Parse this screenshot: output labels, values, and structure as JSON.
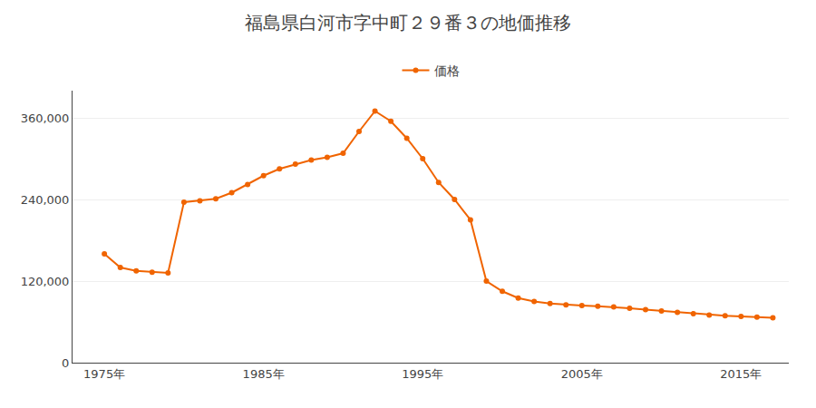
{
  "chart_data": {
    "type": "line",
    "title": "福島県白河市字中町２９番３の地価推移",
    "x": [
      1975,
      1976,
      1977,
      1978,
      1979,
      1980,
      1981,
      1982,
      1983,
      1984,
      1985,
      1986,
      1987,
      1988,
      1989,
      1990,
      1991,
      1992,
      1993,
      1994,
      1995,
      1996,
      1997,
      1998,
      1999,
      2000,
      2001,
      2002,
      2003,
      2004,
      2005,
      2006,
      2007,
      2008,
      2009,
      2010,
      2011,
      2012,
      2013,
      2014,
      2015,
      2016,
      2017
    ],
    "series": [
      {
        "name": "価格",
        "color": "#f06400",
        "marker": "circle",
        "line_style": "solid",
        "values": [
          160000,
          140000,
          135000,
          133000,
          132000,
          236000,
          238000,
          241000,
          250000,
          262000,
          275000,
          285000,
          292000,
          298000,
          302000,
          308000,
          340000,
          370000,
          355000,
          330000,
          300000,
          265000,
          240000,
          210000,
          120000,
          105000,
          95000,
          90000,
          87000,
          85000,
          84000,
          83000,
          82000,
          80000,
          78000,
          76000,
          74000,
          72000,
          70000,
          69000,
          68000,
          67000,
          66000
        ]
      }
    ],
    "xlim": [
      1973,
      2018
    ],
    "xticks": [
      {
        "value": 1975,
        "label": "1975年"
      },
      {
        "value": 1985,
        "label": "1985年"
      },
      {
        "value": 1995,
        "label": "1995年"
      },
      {
        "value": 2005,
        "label": "2005年"
      },
      {
        "value": 2015,
        "label": "2015年"
      }
    ],
    "ylim": [
      0,
      400000
    ],
    "yticks": [
      0,
      {
        "value": 120000,
        "label": "120,000"
      },
      {
        "value": 240000,
        "label": "240,000"
      },
      {
        "value": 360000,
        "label": "360,000"
      }
    ],
    "grid": "y",
    "legend": "top"
  }
}
